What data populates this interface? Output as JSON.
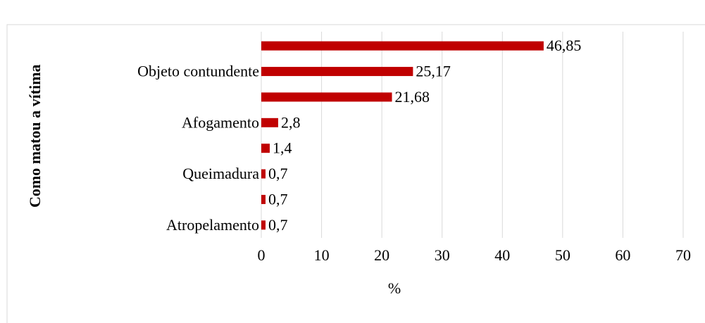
{
  "chart_data": {
    "type": "barh",
    "y_axis_label": "Como matou a vítima",
    "x_axis_label": "%",
    "categories": [
      null,
      "Objeto contundente",
      null,
      "Afogamento",
      null,
      "Queimadura",
      null,
      "Atropelamento"
    ],
    "values": [
      46.85,
      25.17,
      21.68,
      2.8,
      1.4,
      0.7,
      0.7,
      0.7
    ],
    "value_labels": [
      "46,85",
      "25,17",
      "21,68",
      "2,8",
      "1,4",
      "0,7",
      "0,7",
      "0,7"
    ],
    "color": "#c00000",
    "xlim": [
      0,
      70
    ],
    "xticks": [
      0,
      10,
      20,
      30,
      40,
      50,
      60,
      70
    ],
    "grid": true
  }
}
